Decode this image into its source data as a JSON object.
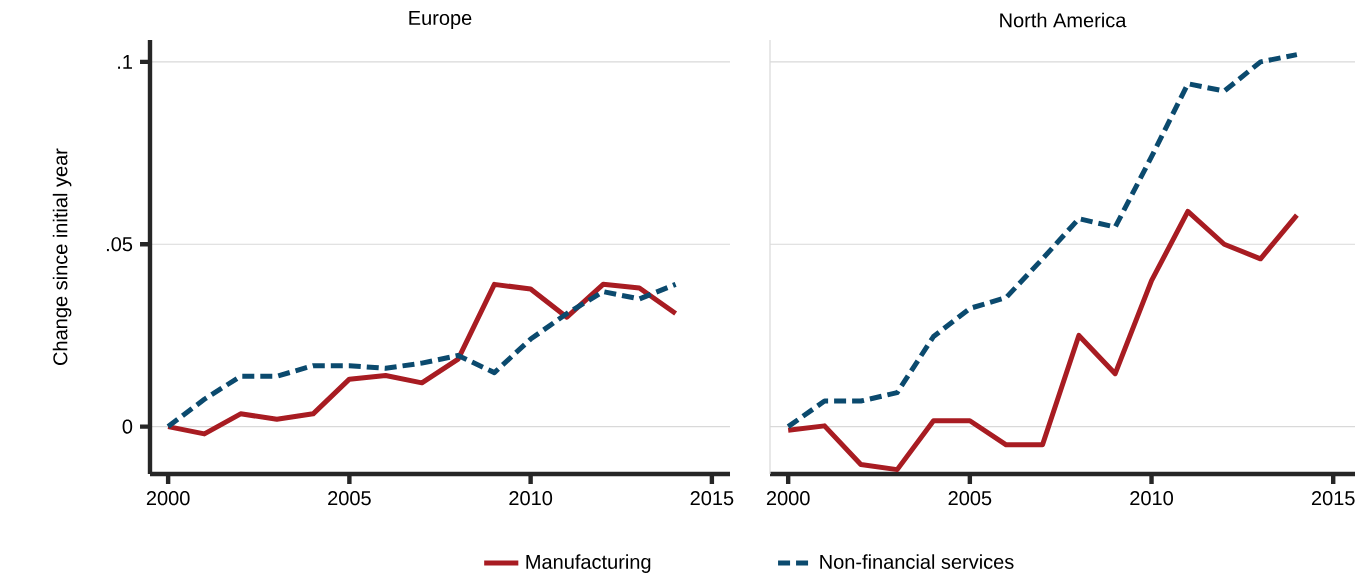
{
  "chart_data": [
    {
      "type": "line",
      "title": "Europe",
      "ylabel": "Change since initial year",
      "x": [
        2000,
        2001,
        2002,
        2003,
        2004,
        2005,
        2006,
        2007,
        2008,
        2009,
        2010,
        2011,
        2012,
        2013,
        2014
      ],
      "series": [
        {
          "name": "Manufacturing",
          "color": "#a81c22",
          "line_style": "solid",
          "values": [
            0,
            -0.002,
            0.0035,
            0.002,
            0.0035,
            0.013,
            0.014,
            0.012,
            0.0185,
            0.039,
            0.0377,
            0.03,
            0.039,
            0.038,
            0.031
          ]
        },
        {
          "name": "Non-financial services",
          "color": "#0b4a6e",
          "line_style": "dashed",
          "values": [
            0,
            0.0075,
            0.0138,
            0.0138,
            0.0167,
            0.0167,
            0.016,
            0.0174,
            0.0195,
            0.0148,
            0.024,
            0.031,
            0.037,
            0.035,
            0.039
          ]
        }
      ],
      "xlim": [
        1999.5,
        2015.5
      ],
      "ylim": [
        -0.013,
        0.106
      ],
      "xticks": [
        2000,
        2005,
        2010,
        2015
      ],
      "yticks": [
        {
          "value": 0,
          "label": "0"
        },
        {
          "value": 0.05,
          "label": ".05"
        },
        {
          "value": 0.1,
          "label": ".1"
        }
      ],
      "grid": "y",
      "legend": "bottom"
    },
    {
      "type": "line",
      "title": "North America",
      "x": [
        2000,
        2001,
        2002,
        2003,
        2004,
        2005,
        2006,
        2007,
        2008,
        2009,
        2010,
        2011,
        2012,
        2013,
        2014
      ],
      "series": [
        {
          "color": "#a81c22",
          "line_style": "solid",
          "values": [
            -0.001,
            0.0002,
            -0.0104,
            -0.0118,
            0.0016,
            0.0016,
            -0.005,
            -0.005,
            0.025,
            0.0145,
            0.04,
            0.059,
            0.05,
            0.046,
            0.058
          ]
        },
        {
          "color": "#0b4a6e",
          "line_style": "dashed",
          "values": [
            0,
            0.007,
            0.007,
            0.0093,
            0.0247,
            0.0324,
            0.0354,
            0.046,
            0.057,
            0.0547,
            0.074,
            0.094,
            0.092,
            0.1,
            0.102
          ]
        }
      ],
      "xlim": [
        1999.5,
        2015.6
      ],
      "ylim": [
        -0.013,
        0.106
      ],
      "xticks": [
        2000,
        2005,
        2010,
        2015
      ],
      "yticks": [
        {
          "value": 0,
          "label": null
        },
        {
          "value": 0.05,
          "label": null
        },
        {
          "value": 0.1,
          "label": null
        }
      ],
      "grid": "y",
      "tick_labels": "x"
    }
  ]
}
